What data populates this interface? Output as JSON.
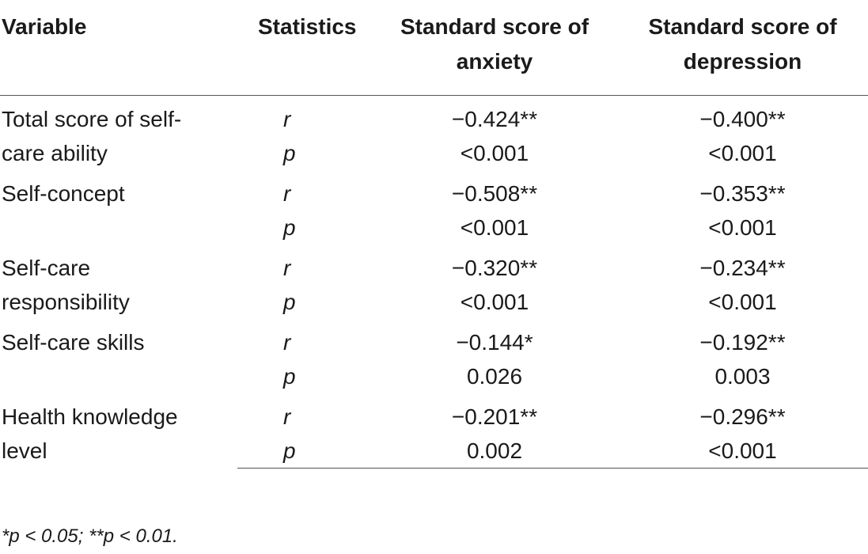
{
  "headers": {
    "variable": "Variable",
    "statistics": "Statistics",
    "anxiety": "Standard score of anxiety",
    "depression": "Standard score of depression"
  },
  "rows": [
    {
      "variable": "Total score of self-care ability",
      "r_label": "r",
      "p_label": "p",
      "anxiety_r": "−0.424**",
      "anxiety_p": "<0.001",
      "depression_r": "−0.400**",
      "depression_p": "<0.001"
    },
    {
      "variable": "Self-concept",
      "r_label": "r",
      "p_label": "p",
      "anxiety_r": "−0.508**",
      "anxiety_p": "<0.001",
      "depression_r": "−0.353**",
      "depression_p": "<0.001"
    },
    {
      "variable": "Self-care responsibility",
      "r_label": "r",
      "p_label": "p",
      "anxiety_r": "−0.320**",
      "anxiety_p": "<0.001",
      "depression_r": "−0.234**",
      "depression_p": "<0.001"
    },
    {
      "variable": "Self-care skills",
      "r_label": "r",
      "p_label": "p",
      "anxiety_r": "−0.144*",
      "anxiety_p": "0.026",
      "depression_r": "−0.192**",
      "depression_p": "0.003"
    },
    {
      "variable": "Health knowledge level",
      "r_label": "r",
      "p_label": "p",
      "anxiety_r": "−0.201**",
      "anxiety_p": "0.002",
      "depression_r": "−0.296**",
      "depression_p": "<0.001"
    }
  ],
  "footnote": "*p < 0.05; **p < 0.01."
}
